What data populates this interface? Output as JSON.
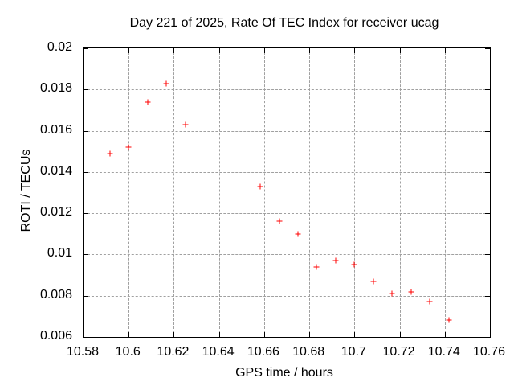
{
  "chart_data": {
    "type": "scatter",
    "title": "Day 221 of 2025, Rate Of TEC Index for receiver ucag",
    "xlabel": "GPS time / hours",
    "ylabel": "ROTI / TECUs",
    "xlim": [
      10.58,
      10.76
    ],
    "ylim": [
      0.006,
      0.02
    ],
    "x_ticks": [
      {
        "value": 10.58,
        "label": "10.58"
      },
      {
        "value": 10.6,
        "label": "10.6"
      },
      {
        "value": 10.62,
        "label": "10.62"
      },
      {
        "value": 10.64,
        "label": "10.64"
      },
      {
        "value": 10.66,
        "label": "10.66"
      },
      {
        "value": 10.68,
        "label": "10.68"
      },
      {
        "value": 10.7,
        "label": "10.7"
      },
      {
        "value": 10.72,
        "label": "10.72"
      },
      {
        "value": 10.74,
        "label": "10.74"
      },
      {
        "value": 10.76,
        "label": "10.76"
      }
    ],
    "y_ticks": [
      {
        "value": 0.006,
        "label": "0.006"
      },
      {
        "value": 0.008,
        "label": "0.008"
      },
      {
        "value": 0.01,
        "label": "0.01"
      },
      {
        "value": 0.012,
        "label": "0.012"
      },
      {
        "value": 0.014,
        "label": "0.014"
      },
      {
        "value": 0.016,
        "label": "0.016"
      },
      {
        "value": 0.018,
        "label": "0.018"
      },
      {
        "value": 0.02,
        "label": "0.02"
      }
    ],
    "grid": true,
    "legend": false,
    "marker_shape": "plus",
    "marker_color": "#ff0000",
    "grid_color": "#a0a0a0",
    "border_color": "#000000",
    "points": [
      {
        "x": 10.5917,
        "y": 0.0149
      },
      {
        "x": 10.6,
        "y": 0.0152
      },
      {
        "x": 10.6083,
        "y": 0.0174
      },
      {
        "x": 10.6167,
        "y": 0.0183
      },
      {
        "x": 10.625,
        "y": 0.0163
      },
      {
        "x": 10.6583,
        "y": 0.0133
      },
      {
        "x": 10.6667,
        "y": 0.0116
      },
      {
        "x": 10.675,
        "y": 0.011
      },
      {
        "x": 10.6833,
        "y": 0.0094
      },
      {
        "x": 10.6917,
        "y": 0.0097
      },
      {
        "x": 10.7,
        "y": 0.0095
      },
      {
        "x": 10.7083,
        "y": 0.0087
      },
      {
        "x": 10.7167,
        "y": 0.0081
      },
      {
        "x": 10.725,
        "y": 0.0082
      },
      {
        "x": 10.7333,
        "y": 0.0077
      },
      {
        "x": 10.7417,
        "y": 0.0068
      }
    ]
  }
}
